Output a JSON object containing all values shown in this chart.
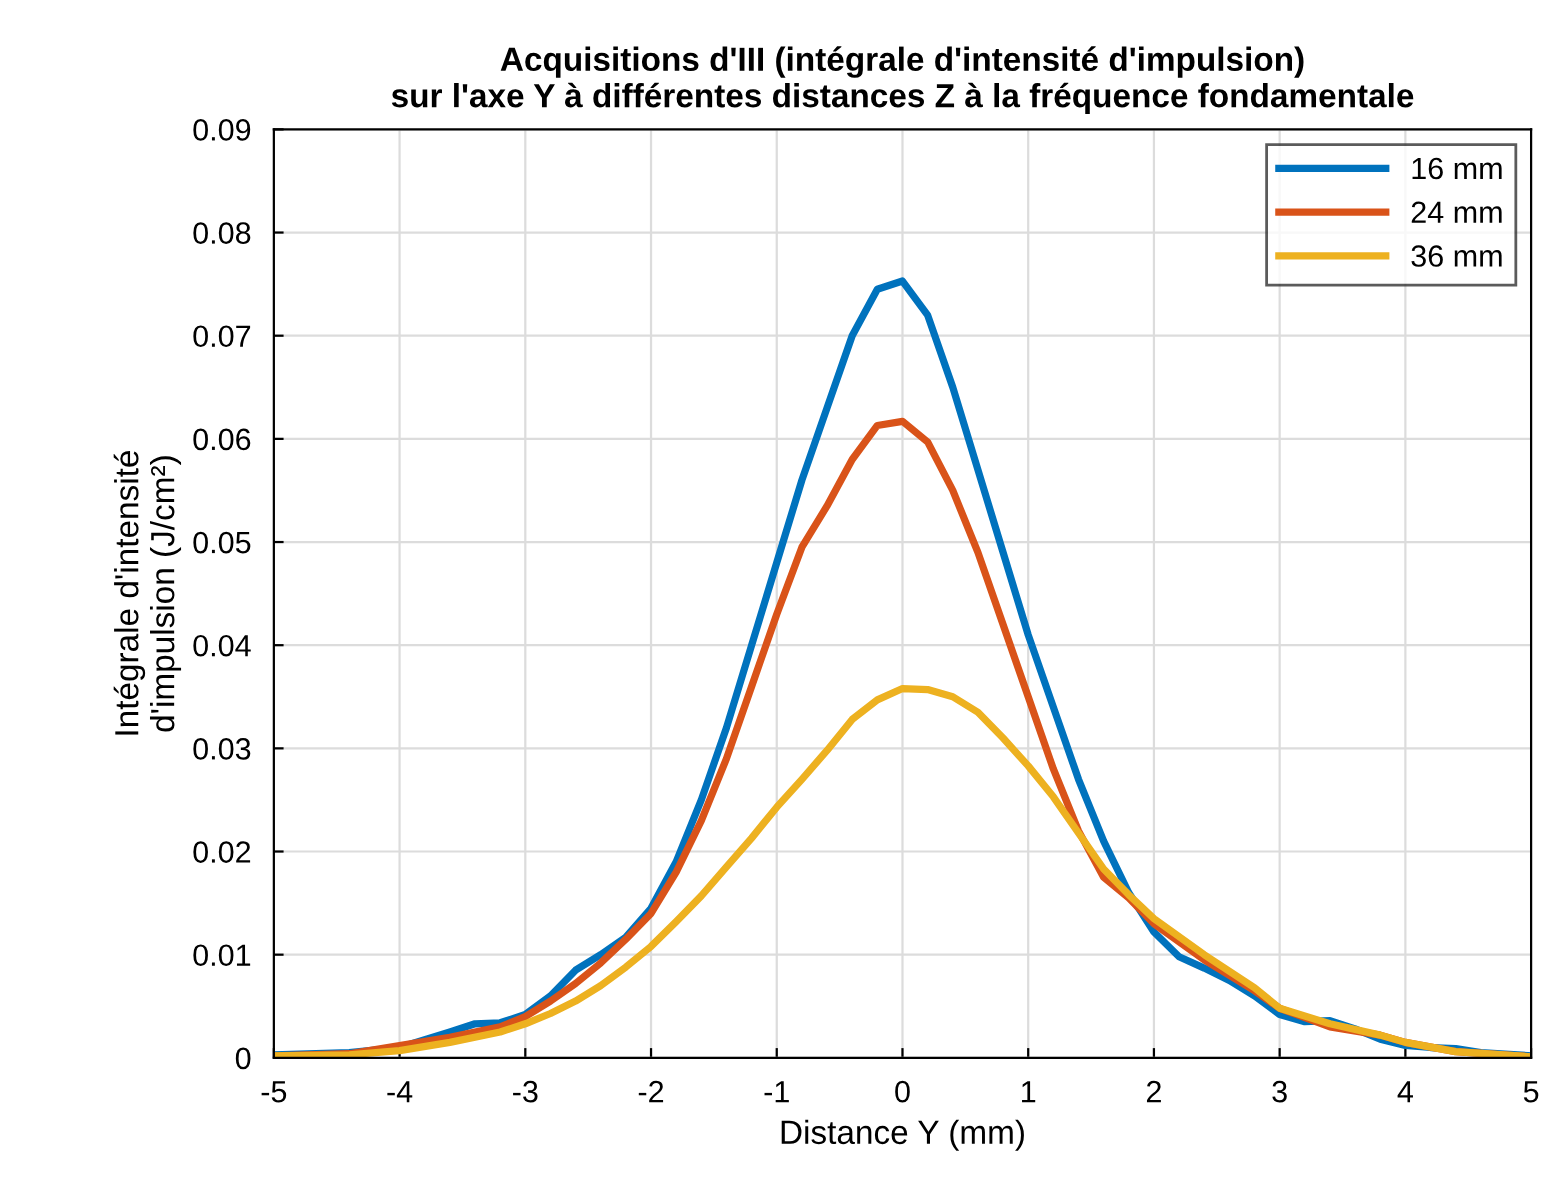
{
  "chart_data": {
    "type": "line",
    "title": "Acquisitions d'III (intégrale d'intensité d'impulsion)\nsur l'axe Y à différentes distances Z à la fréquence fondamentale",
    "xlabel": "Distance Y (mm)",
    "ylabel": "Intégrale d'intensité\nd'impulsion (J/cm²)",
    "xlim": [
      -5,
      5
    ],
    "xticks": [
      -5,
      -4,
      -3,
      -2,
      -1,
      0,
      1,
      2,
      3,
      4,
      5
    ],
    "ylim": [
      0,
      0.09
    ],
    "yticks": [
      0,
      0.01,
      0.02,
      0.03,
      0.04,
      0.05,
      0.06,
      0.07,
      0.08,
      0.09
    ],
    "grid": true,
    "legend": "top right",
    "series": [
      {
        "name": "16 mm",
        "color": "#0072bd",
        "x": [
          -5,
          -4.4,
          -4,
          -3.6,
          -3.4,
          -3.2,
          -3,
          -2.8,
          -2.6,
          -2.4,
          -2.2,
          -2,
          -1.8,
          -1.6,
          -1.4,
          -1.2,
          -1,
          -0.8,
          -0.6,
          -0.4,
          -0.2,
          0,
          0.2,
          0.4,
          0.6,
          0.8,
          1,
          1.2,
          1.4,
          1.6,
          1.8,
          2,
          2.2,
          2.4,
          2.6,
          2.8,
          3,
          3.2,
          3.4,
          3.6,
          3.8,
          4,
          4.2,
          4.4,
          4.6,
          5
        ],
        "values": [
          0.0003,
          0.0005,
          0.001,
          0.0025,
          0.0033,
          0.0034,
          0.0042,
          0.006,
          0.0085,
          0.01,
          0.0117,
          0.0145,
          0.019,
          0.025,
          0.032,
          0.04,
          0.048,
          0.056,
          0.063,
          0.07,
          0.0745,
          0.0753,
          0.072,
          0.065,
          0.057,
          0.049,
          0.041,
          0.034,
          0.027,
          0.021,
          0.016,
          0.0122,
          0.0098,
          0.0087,
          0.0075,
          0.006,
          0.0042,
          0.0035,
          0.0036,
          0.0028,
          0.0018,
          0.0012,
          0.001,
          0.0009,
          0.0005,
          0.0002
        ]
      },
      {
        "name": "24 mm",
        "color": "#d95319",
        "x": [
          -5,
          -4.4,
          -4,
          -3.6,
          -3.2,
          -3,
          -2.8,
          -2.6,
          -2.4,
          -2.2,
          -2,
          -1.8,
          -1.6,
          -1.4,
          -1.2,
          -1,
          -0.8,
          -0.6,
          -0.4,
          -0.2,
          0,
          0.2,
          0.4,
          0.6,
          0.8,
          1,
          1.2,
          1.4,
          1.6,
          1.8,
          2,
          2.4,
          2.8,
          3,
          3.4,
          3.8,
          4,
          4.4,
          5
        ],
        "values": [
          0.0002,
          0.0004,
          0.0012,
          0.002,
          0.003,
          0.004,
          0.0055,
          0.0072,
          0.0092,
          0.0115,
          0.014,
          0.018,
          0.023,
          0.029,
          0.036,
          0.043,
          0.0495,
          0.0535,
          0.058,
          0.0613,
          0.0617,
          0.0597,
          0.055,
          0.049,
          0.042,
          0.035,
          0.028,
          0.022,
          0.0175,
          0.0155,
          0.013,
          0.0095,
          0.0065,
          0.0048,
          0.003,
          0.0022,
          0.0015,
          0.0006,
          0.0001
        ]
      },
      {
        "name": "36 mm",
        "color": "#edb120",
        "x": [
          -5,
          -4.4,
          -4,
          -3.6,
          -3.2,
          -3,
          -2.8,
          -2.6,
          -2.4,
          -2.2,
          -2,
          -1.8,
          -1.6,
          -1.4,
          -1.2,
          -1,
          -0.8,
          -0.6,
          -0.4,
          -0.2,
          0,
          0.2,
          0.4,
          0.6,
          0.8,
          1,
          1.2,
          1.4,
          1.6,
          1.8,
          2,
          2.4,
          2.8,
          3,
          3.4,
          3.8,
          4,
          4.4,
          5
        ],
        "values": [
          0.0002,
          0.0003,
          0.0007,
          0.0015,
          0.0025,
          0.0033,
          0.0043,
          0.0055,
          0.007,
          0.0088,
          0.0108,
          0.0132,
          0.0157,
          0.0185,
          0.0213,
          0.0243,
          0.027,
          0.0298,
          0.0328,
          0.0347,
          0.0358,
          0.0357,
          0.035,
          0.0335,
          0.031,
          0.0283,
          0.0253,
          0.0218,
          0.0183,
          0.0158,
          0.0135,
          0.01,
          0.0068,
          0.0048,
          0.0033,
          0.0022,
          0.0015,
          0.0006,
          0.0001
        ]
      }
    ]
  }
}
